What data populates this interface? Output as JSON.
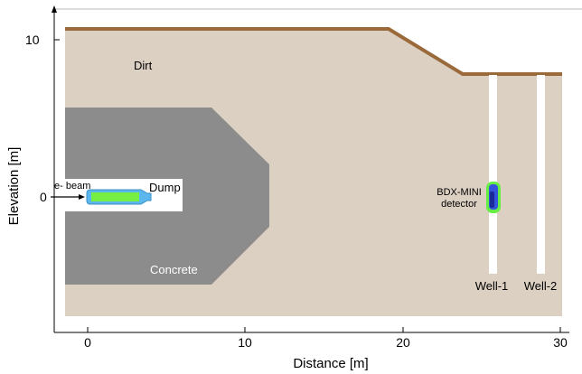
{
  "axes": {
    "x_title": "Distance [m]",
    "y_title": "Elevation [m]",
    "x_ticks": [
      "0",
      "10",
      "20",
      "30"
    ],
    "y_ticks": [
      "10",
      "0"
    ]
  },
  "labels": {
    "dirt": "Dirt",
    "concrete": "Concrete",
    "beam": "e- beam",
    "dump": "Dump",
    "detector_line1": "BDX-MINI",
    "detector_line2": "detector",
    "well1": "Well-1",
    "well2": "Well-2"
  },
  "colors": {
    "dirt": "#dcd0c3",
    "surface": "#9b6a3a",
    "concrete": "#8c8c8c",
    "beam_pipe": "#5bb7ee",
    "beam_core": "#77ee44",
    "detector_outer": "#66ee44",
    "detector_inner": "#3355dd",
    "detector_core": "#1a2a99"
  }
}
